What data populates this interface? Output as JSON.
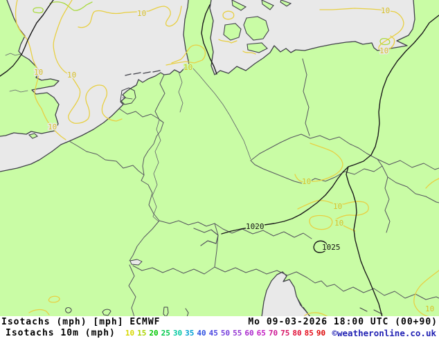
{
  "map": {
    "region": "Central Europe / Germany",
    "contour_labels": [
      {
        "text": "10"
      },
      {
        "text": "10"
      },
      {
        "text": "10"
      },
      {
        "text": "10"
      },
      {
        "text": "10"
      },
      {
        "text": "10"
      },
      {
        "text": "10"
      },
      {
        "text": "10"
      },
      {
        "text": "10"
      },
      {
        "text": "10"
      },
      {
        "text": "10"
      }
    ],
    "isobar_labels": [
      {
        "text": "1020"
      },
      {
        "text": "1025"
      }
    ],
    "colors": {
      "land": "#c9fca5",
      "sea": "#e9e9e9",
      "isotach_10_contour": "#e8cf42",
      "isotach_15_contour": "#a9da3e",
      "isobar": "#1a1a1a",
      "coastline": "#3f3f48"
    }
  },
  "legend": {
    "line1_left": "Isotachs (mph) [mph] ECMWF",
    "line1_right": "Mo 09-03-2026 18:00 UTC (00+90)",
    "line2_left": "Isotachs 10m (mph)",
    "copyright": "©weatheronline.co.uk",
    "scale": [
      {
        "value": "10",
        "color": "#d8d800"
      },
      {
        "value": "15",
        "color": "#aad400"
      },
      {
        "value": "20",
        "color": "#00c800"
      },
      {
        "value": "25",
        "color": "#00c84b"
      },
      {
        "value": "30",
        "color": "#00c8a0"
      },
      {
        "value": "35",
        "color": "#00a0d2"
      },
      {
        "value": "40",
        "color": "#2d50e1"
      },
      {
        "value": "45",
        "color": "#4b46e1"
      },
      {
        "value": "50",
        "color": "#7841dc"
      },
      {
        "value": "55",
        "color": "#9637d2"
      },
      {
        "value": "60",
        "color": "#aa28cd"
      },
      {
        "value": "65",
        "color": "#c31ec3"
      },
      {
        "value": "70",
        "color": "#cd1996"
      },
      {
        "value": "75",
        "color": "#d71464"
      },
      {
        "value": "80",
        "color": "#e10f37"
      },
      {
        "value": "85",
        "color": "#e60f1e"
      },
      {
        "value": "90",
        "color": "#dc0505"
      }
    ]
  }
}
